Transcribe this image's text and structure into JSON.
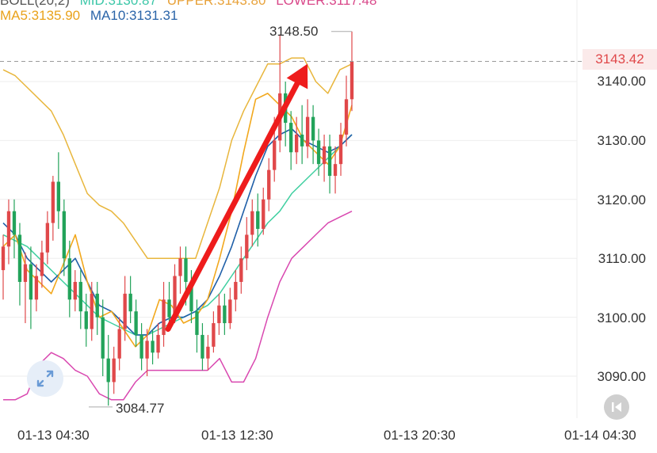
{
  "legend": {
    "boll_label": "BOLL(20,2)",
    "mid_text": "MID:3130.87",
    "upper_text": "UPPER:3143.80",
    "lower_text": "LOWER:3117.48",
    "ma5_text": "MA5:3135.90",
    "ma10_text": "MA10:3131.31"
  },
  "colors": {
    "up": "#e0484a",
    "down": "#22a35a",
    "upper_band": "#e8b63c",
    "mid_band": "#3fcfa0",
    "lower_band": "#d948b0",
    "ma5": "#f2a81d",
    "ma10": "#1f5fa8",
    "arrow": "#ee1c1c",
    "grid": "#eeeeee",
    "mid_legend": "#3cc7a8",
    "upper_legend": "#e8a23a",
    "lower_legend": "#d9488a",
    "ma5_legend": "#e9a21b",
    "ma10_legend": "#2a64a8"
  },
  "icons": {
    "expand": "expand-icon",
    "rewind": "rewind-icon"
  },
  "chart_data": {
    "type": "candlestick",
    "y_range": [
      3083,
      3152
    ],
    "y_ticks": [
      "3140.00",
      "3130.00",
      "3120.00",
      "3110.00",
      "3100.00",
      "3090.00"
    ],
    "y_tick_values": [
      3140,
      3130,
      3120,
      3110,
      3100,
      3090
    ],
    "x_ticks": [
      "01-13 04:30",
      "01-13 12:30",
      "01-13 20:30",
      "01-14 04:30"
    ],
    "last_price": "3143.42",
    "last_price_value": 3143.42,
    "high_label": "3148.50",
    "high_value": 3148.5,
    "low_label": "3084.77",
    "low_value": 3084.77,
    "candles": [
      [
        3108,
        3112,
        3103,
        3114
      ],
      [
        3112,
        3118,
        3109,
        3120
      ],
      [
        3118,
        3114,
        3110,
        3120
      ],
      [
        3114,
        3106,
        3102,
        3116
      ],
      [
        3106,
        3109,
        3099,
        3111
      ],
      [
        3109,
        3103,
        3098,
        3112
      ],
      [
        3103,
        3107,
        3101,
        3109
      ],
      [
        3107,
        3111,
        3105,
        3113
      ],
      [
        3111,
        3116,
        3109,
        3118
      ],
      [
        3116,
        3123,
        3113,
        3124
      ],
      [
        3123,
        3118,
        3115,
        3128
      ],
      [
        3118,
        3110,
        3107,
        3120
      ],
      [
        3110,
        3103,
        3100,
        3113
      ],
      [
        3103,
        3106,
        3101,
        3108
      ],
      [
        3106,
        3101,
        3098,
        3108
      ],
      [
        3101,
        3098,
        3095,
        3104
      ],
      [
        3098,
        3104,
        3096,
        3106
      ],
      [
        3104,
        3100,
        3097,
        3106
      ],
      [
        3100,
        3093,
        3090,
        3103
      ],
      [
        3093,
        3089,
        3085,
        3097
      ],
      [
        3089,
        3093,
        3087,
        3095
      ],
      [
        3093,
        3098,
        3091,
        3100
      ],
      [
        3098,
        3104,
        3096,
        3107
      ],
      [
        3104,
        3101,
        3099,
        3107
      ],
      [
        3101,
        3097,
        3095,
        3103
      ],
      [
        3097,
        3093,
        3091,
        3099
      ],
      [
        3093,
        3096,
        3090,
        3098
      ],
      [
        3096,
        3094,
        3092,
        3098
      ],
      [
        3094,
        3097,
        3093,
        3099
      ],
      [
        3097,
        3103,
        3095,
        3106
      ],
      [
        3103,
        3100,
        3098,
        3106
      ],
      [
        3100,
        3107,
        3099,
        3109
      ],
      [
        3107,
        3110,
        3104,
        3112
      ],
      [
        3110,
        3106,
        3102,
        3112
      ],
      [
        3106,
        3101,
        3099,
        3108
      ],
      [
        3101,
        3097,
        3094,
        3103
      ],
      [
        3097,
        3093,
        3091,
        3099
      ],
      [
        3093,
        3095,
        3091,
        3097
      ],
      [
        3095,
        3099,
        3094,
        3101
      ],
      [
        3099,
        3102,
        3097,
        3104
      ],
      [
        3102,
        3099,
        3097,
        3104
      ],
      [
        3099,
        3103,
        3098,
        3105
      ],
      [
        3103,
        3106,
        3101,
        3108
      ],
      [
        3106,
        3110,
        3104,
        3112
      ],
      [
        3110,
        3114,
        3108,
        3117
      ],
      [
        3114,
        3118,
        3112,
        3120
      ],
      [
        3118,
        3115,
        3112,
        3121
      ],
      [
        3115,
        3120,
        3114,
        3122
      ],
      [
        3120,
        3125,
        3118,
        3127
      ],
      [
        3125,
        3130,
        3123,
        3134
      ],
      [
        3130,
        3138,
        3128,
        3148
      ],
      [
        3138,
        3133,
        3129,
        3140
      ],
      [
        3133,
        3128,
        3125,
        3135
      ],
      [
        3128,
        3131,
        3126,
        3134
      ],
      [
        3131,
        3129,
        3126,
        3136
      ],
      [
        3129,
        3134,
        3127,
        3137
      ],
      [
        3134,
        3130,
        3126,
        3136
      ],
      [
        3130,
        3126,
        3124,
        3132
      ],
      [
        3126,
        3129,
        3123,
        3131
      ],
      [
        3129,
        3124,
        3121,
        3131
      ],
      [
        3124,
        3126,
        3121,
        3129
      ],
      [
        3126,
        3131,
        3124,
        3133
      ],
      [
        3131,
        3137,
        3129,
        3141
      ],
      [
        3137,
        3143.42,
        3135,
        3148.5
      ]
    ],
    "upper_band": [
      3142,
      3141,
      3139,
      3137,
      3135,
      3131,
      3126,
      3121,
      3119,
      3118,
      3116,
      3113,
      3110,
      3110,
      3110,
      3110,
      3110,
      3116,
      3122,
      3130,
      3135,
      3139,
      3143,
      3143,
      3144,
      3144,
      3140,
      3138,
      3142,
      3143
    ],
    "mid_band": [
      3114,
      3113,
      3112,
      3110,
      3108,
      3106,
      3104,
      3102,
      3100,
      3099,
      3098,
      3097,
      3097,
      3098,
      3099,
      3100,
      3101,
      3102,
      3104,
      3107,
      3110,
      3113,
      3116,
      3118,
      3121,
      3123,
      3125,
      3127,
      3129,
      3131
    ],
    "lower_band": [
      3086,
      3086,
      3087,
      3092,
      3094,
      3093,
      3091,
      3090,
      3087,
      3086,
      3086,
      3089,
      3091,
      3091,
      3091,
      3091,
      3091,
      3091,
      3093,
      3089,
      3089,
      3093,
      3100,
      3106,
      3110,
      3112,
      3114,
      3116,
      3117,
      3118
    ],
    "ma5": [
      3112,
      3114,
      3108,
      3106,
      3104,
      3109,
      3114,
      3106,
      3100,
      3101,
      3098,
      3095,
      3097,
      3103,
      3102,
      3099,
      3100,
      3103,
      3110,
      3118,
      3128,
      3137,
      3138,
      3136,
      3134,
      3130,
      3128,
      3126,
      3129,
      3136
    ],
    "ma10": [
      3116,
      3114,
      3110,
      3108,
      3106,
      3108,
      3110,
      3106,
      3102,
      3101,
      3099,
      3097,
      3097,
      3099,
      3100,
      3100,
      3101,
      3103,
      3107,
      3112,
      3118,
      3124,
      3129,
      3131,
      3132,
      3130,
      3129,
      3128,
      3129,
      3131
    ],
    "trend_arrow": {
      "from": [
        3098,
        3143
      ],
      "label": ""
    }
  }
}
